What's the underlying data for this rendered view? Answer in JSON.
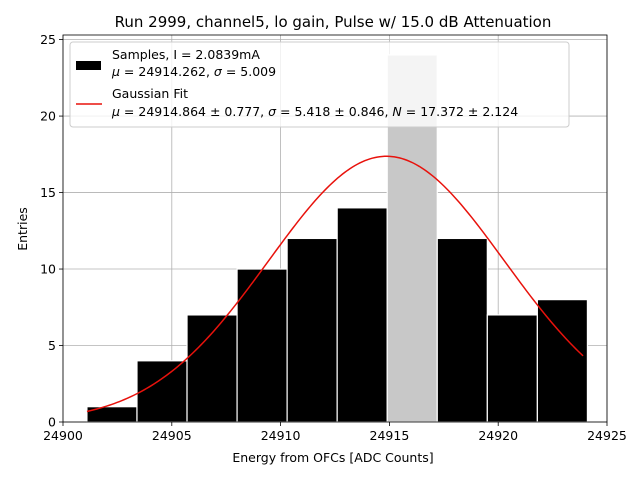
{
  "chart_data": {
    "type": "bar",
    "title": "Run 2999, channel5, lo gain, Pulse w/ 15.0 dB Attenuation",
    "xlabel": "Energy from OFCs [ADC Counts]",
    "ylabel": "Entries",
    "xlim": [
      24900,
      24925
    ],
    "ylim": [
      0,
      25.3
    ],
    "xticks": [
      24900,
      24905,
      24910,
      24915,
      24920,
      24925
    ],
    "yticks": [
      0,
      5,
      10,
      15,
      20,
      25
    ],
    "grid": true,
    "histogram": {
      "name": "Samples",
      "bin_edges": [
        24901.1,
        24903.4,
        24905.7,
        24908.0,
        24910.3,
        24912.6,
        24914.9,
        24917.2,
        24919.5,
        24921.8,
        24924.1
      ],
      "counts": [
        1,
        4,
        7,
        10,
        12,
        14,
        24,
        12,
        7,
        8
      ],
      "color": "#000000",
      "edgecolor": "#ffffff",
      "highlight_bin_color": "#c8c8c8"
    },
    "fit": {
      "name": "Gaussian Fit",
      "function": "gaussian",
      "mu": 24914.864,
      "sigma": 5.418,
      "N": 17.372,
      "x_range": [
        24901.1,
        24923.9
      ],
      "color": "#e8120c"
    },
    "legend": {
      "placement": "upper-left",
      "samples_line1": "Samples, I = 2.0839mA",
      "samples_line2_mu": "μ",
      "samples_line2_rest": " = 24914.262, ",
      "samples_line2_sigma": "σ",
      "samples_line2_end": " = 5.009",
      "fit_line1": "Gaussian Fit",
      "fit_line2_mu": "μ",
      "fit_line2_a": " = 24914.864 ± 0.777, ",
      "fit_line2_sigma": "σ",
      "fit_line2_b": " = 5.418 ± 0.846, ",
      "fit_line2_N": "N",
      "fit_line2_c": " = 17.372 ± 2.124"
    }
  }
}
